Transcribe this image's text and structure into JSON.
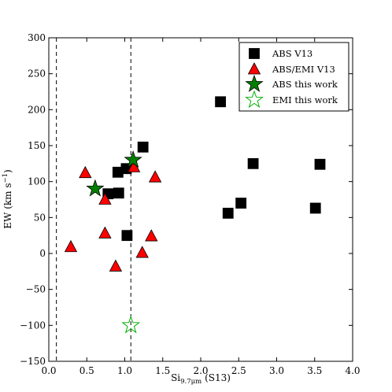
{
  "chart_data": {
    "type": "scatter",
    "xlabel": "Si9.7μm (S13)",
    "xlabel_parts": {
      "base": "Si",
      "sub": "9.7μm",
      "rest": " (S13)"
    },
    "ylabel": "EW (km s−1)",
    "ylabel_parts": {
      "base": "EW (km s",
      "sup": "−1",
      "rest": ")"
    },
    "xlim": [
      0.0,
      4.0
    ],
    "ylim": [
      -150,
      300
    ],
    "xticks": [
      0.0,
      0.5,
      1.0,
      1.5,
      2.0,
      2.5,
      3.0,
      3.5,
      4.0
    ],
    "xtick_labels": [
      "0.0",
      "0.5",
      "1.0",
      "1.5",
      "2.0",
      "2.5",
      "3.0",
      "3.5",
      "4.0"
    ],
    "yticks": [
      -150,
      -100,
      -50,
      0,
      50,
      100,
      150,
      200,
      250,
      300
    ],
    "ytick_labels": [
      "−150",
      "−100",
      "−50",
      "0",
      "50",
      "100",
      "150",
      "200",
      "250",
      "300"
    ],
    "grid": false,
    "legend_position": "top-right",
    "vlines": [
      0.1,
      1.08
    ],
    "series": [
      {
        "name": "ABS V13",
        "marker": "square",
        "color": "#000000",
        "points": [
          {
            "x": 0.78,
            "y": 83
          },
          {
            "x": 0.92,
            "y": 84
          },
          {
            "x": 0.91,
            "y": 113
          },
          {
            "x": 1.02,
            "y": 118
          },
          {
            "x": 1.24,
            "y": 148
          },
          {
            "x": 1.03,
            "y": 25
          },
          {
            "x": 2.26,
            "y": 211
          },
          {
            "x": 2.36,
            "y": 56
          },
          {
            "x": 2.53,
            "y": 70
          },
          {
            "x": 2.69,
            "y": 125
          },
          {
            "x": 3.51,
            "y": 63
          },
          {
            "x": 3.57,
            "y": 124
          }
        ]
      },
      {
        "name": "ABS/EMI V13",
        "marker": "triangle",
        "color": "#ff0000",
        "points": [
          {
            "x": 0.29,
            "y": 9
          },
          {
            "x": 0.48,
            "y": 112
          },
          {
            "x": 0.74,
            "y": 75
          },
          {
            "x": 0.74,
            "y": 28
          },
          {
            "x": 0.88,
            "y": -18
          },
          {
            "x": 1.12,
            "y": 120
          },
          {
            "x": 1.23,
            "y": 1
          },
          {
            "x": 1.35,
            "y": 24
          },
          {
            "x": 1.4,
            "y": 106
          }
        ]
      },
      {
        "name": "ABS this work",
        "marker": "star-filled",
        "color": "#007f00",
        "points": [
          {
            "x": 0.61,
            "y": 90
          },
          {
            "x": 1.11,
            "y": 130
          }
        ]
      },
      {
        "name": "EMI this work",
        "marker": "star-open",
        "color": "#00b000",
        "points": [
          {
            "x": 1.08,
            "y": -100
          }
        ]
      }
    ]
  }
}
